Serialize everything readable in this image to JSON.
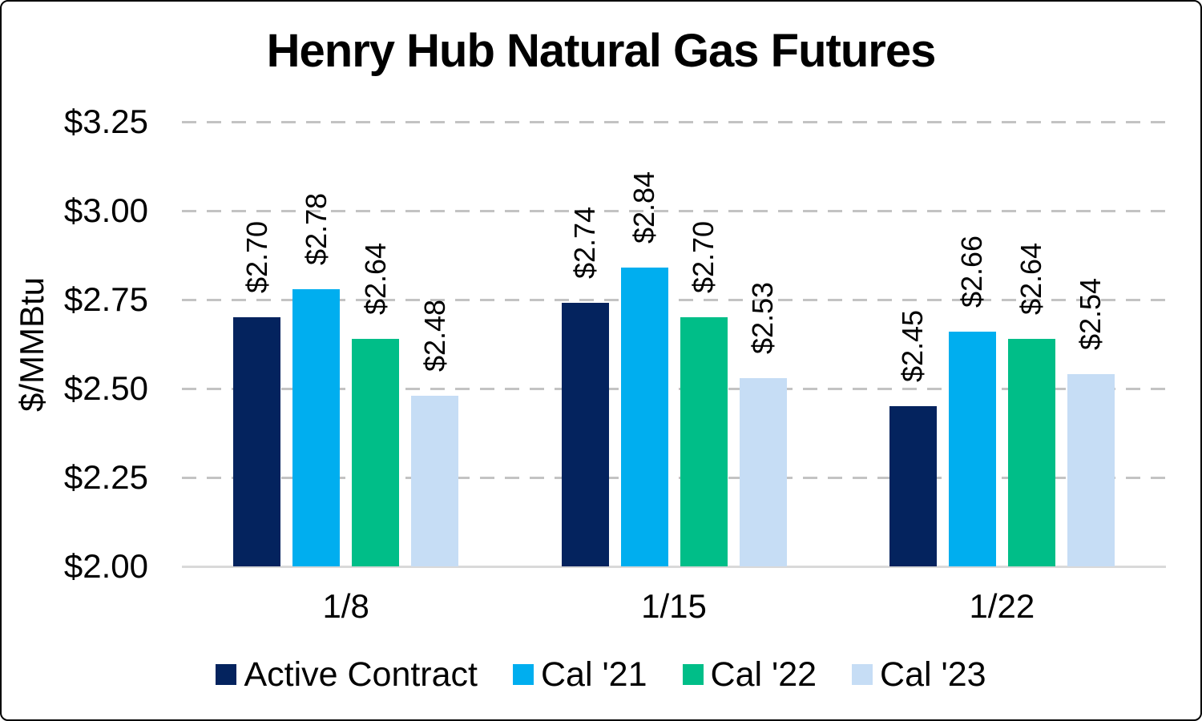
{
  "title": "Henry Hub Natural Gas Futures",
  "chart_data": {
    "type": "bar",
    "title": "Henry Hub Natural Gas Futures",
    "xlabel": "",
    "ylabel": "$/MMBtu",
    "categories": [
      "1/8",
      "1/15",
      "1/22"
    ],
    "series": [
      {
        "name": "Active Contract",
        "color": "#04235E",
        "values": [
          2.7,
          2.74,
          2.45
        ],
        "labels": [
          "$2.70",
          "$2.74",
          "$2.45"
        ]
      },
      {
        "name": "Cal '21",
        "color": "#00AEEF",
        "values": [
          2.78,
          2.84,
          2.66
        ],
        "labels": [
          "$2.78",
          "$2.84",
          "$2.66"
        ]
      },
      {
        "name": "Cal '22",
        "color": "#00BE88",
        "values": [
          2.64,
          2.7,
          2.64
        ],
        "labels": [
          "$2.64",
          "$2.70",
          "$2.64"
        ]
      },
      {
        "name": "Cal '23",
        "color": "#C6DDF5",
        "values": [
          2.48,
          2.53,
          2.54
        ],
        "labels": [
          "$2.48",
          "$2.53",
          "$2.54"
        ]
      }
    ],
    "y_axis": {
      "min": 2.0,
      "max": 3.25,
      "step": 0.25,
      "tick_labels": [
        "$2.00",
        "$2.25",
        "$2.50",
        "$2.75",
        "$3.00",
        "$3.25"
      ]
    },
    "grid": "horizontal dashed",
    "legend_position": "bottom",
    "data_labels": "rotated 90deg above bars",
    "colors": {
      "gridline": "#C3C3C3",
      "axis_line": "#D9D9D9",
      "text": "#000000",
      "background": "#FFFFFF",
      "frame_border": "#000000"
    }
  }
}
